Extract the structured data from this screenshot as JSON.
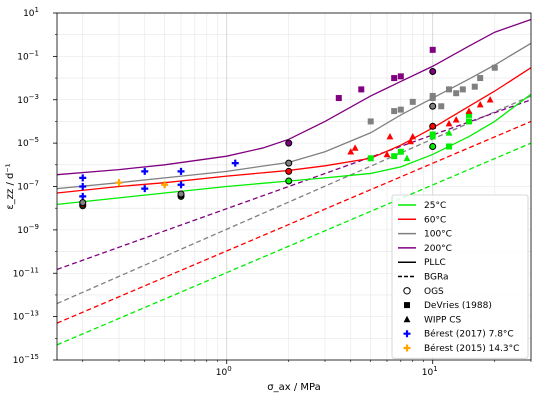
{
  "chart_data": {
    "type": "line",
    "xlabel": "σ_ax / MPa",
    "ylabel": "ε_zz / d⁻¹",
    "x_scale": "log",
    "y_scale": "log",
    "xlim": [
      0.15,
      30
    ],
    "ylim": [
      1e-15,
      10
    ],
    "x_ticks": [
      {
        "value": 1,
        "label": "10",
        "exp": "0"
      },
      {
        "value": 10,
        "label": "10",
        "exp": "1"
      }
    ],
    "y_ticks": [
      {
        "value": 1e-15,
        "label": "10",
        "exp": "−15"
      },
      {
        "value": 1e-13,
        "label": "10",
        "exp": "−13"
      },
      {
        "value": 1e-11,
        "label": "10",
        "exp": "−11"
      },
      {
        "value": 1e-09,
        "label": "10",
        "exp": "−9"
      },
      {
        "value": 1e-07,
        "label": "10",
        "exp": "−7"
      },
      {
        "value": 1e-05,
        "label": "10",
        "exp": "−5"
      },
      {
        "value": 0.001,
        "label": "10",
        "exp": "−3"
      },
      {
        "value": 0.1,
        "label": "10",
        "exp": "−1"
      },
      {
        "value": 10,
        "label": "10",
        "exp": "1"
      }
    ],
    "grid": true,
    "legend_position": "bottom-right",
    "legend": [
      {
        "label": "25°C",
        "kind": "line",
        "color": "#00ee00",
        "dash": "solid"
      },
      {
        "label": "60°C",
        "kind": "line",
        "color": "#ff0000",
        "dash": "solid"
      },
      {
        "label": "100°C",
        "kind": "line",
        "color": "#808080",
        "dash": "solid"
      },
      {
        "label": "200°C",
        "kind": "line",
        "color": "#800080",
        "dash": "solid"
      },
      {
        "label": "PLLC",
        "kind": "line",
        "color": "#000000",
        "dash": "solid"
      },
      {
        "label": "BGRa",
        "kind": "line",
        "color": "#000000",
        "dash": "dashed"
      },
      {
        "label": "OGS",
        "kind": "marker",
        "marker": "circle-open",
        "color": "#000000"
      },
      {
        "label": "DeVries (1988)",
        "kind": "marker",
        "marker": "square",
        "color": "#000000"
      },
      {
        "label": "WIPP CS",
        "kind": "marker",
        "marker": "triangle",
        "color": "#000000"
      },
      {
        "label": "Bérest (2017) 7.8°C",
        "kind": "marker",
        "marker": "plus",
        "color": "#0000ff"
      },
      {
        "label": "Bérest (2015) 14.3°C",
        "kind": "marker",
        "marker": "plus",
        "color": "#ffa500"
      }
    ],
    "curves": {
      "pllc": [
        {
          "color": "#00ee00",
          "points": [
            [
              0.15,
              1.5e-08
            ],
            [
              0.3,
              3e-08
            ],
            [
              0.5,
              5e-08
            ],
            [
              1,
              1e-07
            ],
            [
              2,
              1.8e-07
            ],
            [
              3,
              2.5e-07
            ],
            [
              5,
              4e-07
            ],
            [
              7,
              8e-07
            ],
            [
              10,
              3e-06
            ],
            [
              15,
              2e-05
            ],
            [
              20,
              0.0001
            ],
            [
              30,
              0.0018
            ]
          ]
        },
        {
          "color": "#ff0000",
          "points": [
            [
              0.15,
              5e-08
            ],
            [
              0.3,
              1e-07
            ],
            [
              0.5,
              1.5e-07
            ],
            [
              1,
              3e-07
            ],
            [
              2,
              5.5e-07
            ],
            [
              3,
              9e-07
            ],
            [
              5,
              2e-06
            ],
            [
              7,
              8e-06
            ],
            [
              10,
              5e-05
            ],
            [
              15,
              0.0005
            ],
            [
              20,
              0.0025
            ],
            [
              30,
              0.03
            ]
          ]
        },
        {
          "color": "#808080",
          "points": [
            [
              0.15,
              8e-08
            ],
            [
              0.3,
              1.5e-07
            ],
            [
              0.5,
              2.5e-07
            ],
            [
              1,
              5e-07
            ],
            [
              2,
              1.3e-06
            ],
            [
              3,
              4e-06
            ],
            [
              5,
              3e-05
            ],
            [
              7,
              0.0002
            ],
            [
              10,
              0.0012
            ],
            [
              15,
              0.009
            ],
            [
              20,
              0.04
            ],
            [
              30,
              0.4
            ]
          ]
        },
        {
          "color": "#800080",
          "points": [
            [
              0.15,
              3.5e-07
            ],
            [
              0.3,
              6e-07
            ],
            [
              0.5,
              1e-06
            ],
            [
              1,
              2.5e-06
            ],
            [
              1.5,
              6e-06
            ],
            [
              2,
              1.5e-05
            ],
            [
              3,
              0.0001
            ],
            [
              5,
              0.0015
            ],
            [
              7,
              0.007
            ],
            [
              10,
              0.035
            ],
            [
              15,
              0.3
            ],
            [
              20,
              1.3
            ],
            [
              30,
              5
            ]
          ]
        }
      ],
      "bgra": [
        {
          "color": "#00ee00",
          "points": [
            [
              0.15,
              5e-15
            ],
            [
              30,
              1e-05
            ]
          ]
        },
        {
          "color": "#ff0000",
          "points": [
            [
              0.15,
              5e-14
            ],
            [
              30,
              0.0001
            ]
          ]
        },
        {
          "color": "#808080",
          "points": [
            [
              0.15,
              4e-13
            ],
            [
              30,
              0.0015
            ]
          ]
        },
        {
          "color": "#800080",
          "points": [
            [
              0.15,
              1.5e-11
            ],
            [
              30,
              0.001
            ]
          ]
        }
      ]
    },
    "series": [
      {
        "name": "OGS",
        "color": "#00ee00",
        "marker": "circle-open",
        "points": [
          [
            0.2,
            1.3e-08
          ],
          [
            0.6,
            3.5e-08
          ],
          [
            2,
            1.8e-07
          ],
          [
            10,
            7e-06
          ]
        ]
      },
      {
        "name": "OGS",
        "color": "#ff0000",
        "marker": "circle-open",
        "points": [
          [
            0.2,
            1.5e-08
          ],
          [
            0.6,
            4e-08
          ],
          [
            2,
            5e-07
          ],
          [
            10,
            6e-05
          ]
        ]
      },
      {
        "name": "OGS",
        "color": "#808080",
        "marker": "circle-open",
        "points": [
          [
            0.2,
            1.8e-08
          ],
          [
            0.6,
            4.5e-08
          ],
          [
            2,
            1.2e-06
          ],
          [
            10,
            0.0005
          ]
        ]
      },
      {
        "name": "OGS",
        "color": "#800080",
        "marker": "circle-open",
        "points": [
          [
            2,
            1e-05
          ],
          [
            10,
            0.02
          ]
        ]
      },
      {
        "name": "DeVries (1988)",
        "color": "#00ee00",
        "marker": "square",
        "points": [
          [
            5,
            2e-06
          ],
          [
            6.5,
            2.5e-06
          ],
          [
            10,
            2.5e-05
          ],
          [
            12,
            7e-06
          ],
          [
            15,
            0.0001
          ],
          [
            15,
            0.0002
          ],
          [
            7,
            4e-06
          ]
        ]
      },
      {
        "name": "DeVries (1988)",
        "color": "#808080",
        "marker": "square",
        "points": [
          [
            5,
            0.0001
          ],
          [
            6.5,
            0.0003
          ],
          [
            7,
            0.00035
          ],
          [
            8,
            0.0008
          ],
          [
            10,
            0.0012
          ],
          [
            12,
            0.003
          ],
          [
            13,
            0.002
          ],
          [
            14,
            0.003
          ],
          [
            16,
            0.004
          ],
          [
            17,
            0.01
          ],
          [
            20,
            0.03
          ],
          [
            10,
            0.0015
          ],
          [
            11,
            0.0005
          ]
        ]
      },
      {
        "name": "DeVries (1988)",
        "color": "#800080",
        "marker": "square",
        "points": [
          [
            3.5,
            0.0012
          ],
          [
            4.5,
            0.003
          ],
          [
            6.5,
            0.01
          ],
          [
            7,
            0.012
          ],
          [
            10,
            0.2
          ]
        ]
      },
      {
        "name": "WIPP CS",
        "color": "#00ee00",
        "marker": "triangle",
        "points": [
          [
            7.5,
            2e-06
          ],
          [
            10,
            2e-05
          ],
          [
            12,
            3e-05
          ]
        ]
      },
      {
        "name": "WIPP CS",
        "color": "#ff0000",
        "marker": "triangle",
        "points": [
          [
            4,
            4e-06
          ],
          [
            4.2,
            6e-06
          ],
          [
            6,
            3e-06
          ],
          [
            6.2,
            2e-05
          ],
          [
            7.8,
            1.2e-05
          ],
          [
            8,
            2e-05
          ],
          [
            10,
            6e-05
          ],
          [
            12,
            8e-05
          ],
          [
            13,
            0.00012
          ],
          [
            15,
            0.0003
          ],
          [
            17,
            0.0006
          ],
          [
            19,
            0.001
          ]
        ]
      },
      {
        "name": "Bérest (2017) 7.8°C",
        "color": "#0000ff",
        "marker": "plus",
        "points": [
          [
            0.2,
            2.5e-07
          ],
          [
            0.2,
            1e-07
          ],
          [
            0.2,
            3.5e-08
          ],
          [
            0.4,
            5e-07
          ],
          [
            0.4,
            8e-08
          ],
          [
            0.6,
            5e-07
          ],
          [
            0.6,
            1.2e-07
          ],
          [
            1.1,
            1.2e-06
          ]
        ]
      },
      {
        "name": "Bérest (2015) 14.3°C",
        "color": "#ffa500",
        "marker": "plus",
        "points": [
          [
            0.3,
            1.5e-07
          ],
          [
            0.5,
            1.2e-07
          ]
        ]
      }
    ]
  }
}
